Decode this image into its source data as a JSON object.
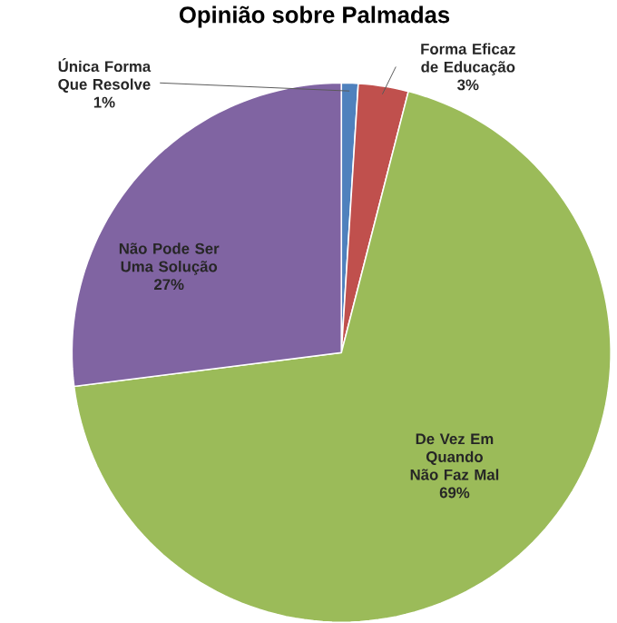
{
  "chart_data": {
    "type": "pie",
    "title": "Opinião sobre Palmadas",
    "categories": [
      "Única Forma Que Resolve",
      "Forma Eficaz de Educação",
      "De Vez Em Quando Não Faz Mal",
      "Não Pode Ser Uma Solução"
    ],
    "values": [
      1,
      3,
      69,
      27
    ],
    "value_labels": [
      "1%",
      "3%",
      "69%",
      "27%"
    ],
    "colors": [
      "#4f81bd",
      "#c0504d",
      "#9bbb59",
      "#8064a2"
    ]
  }
}
